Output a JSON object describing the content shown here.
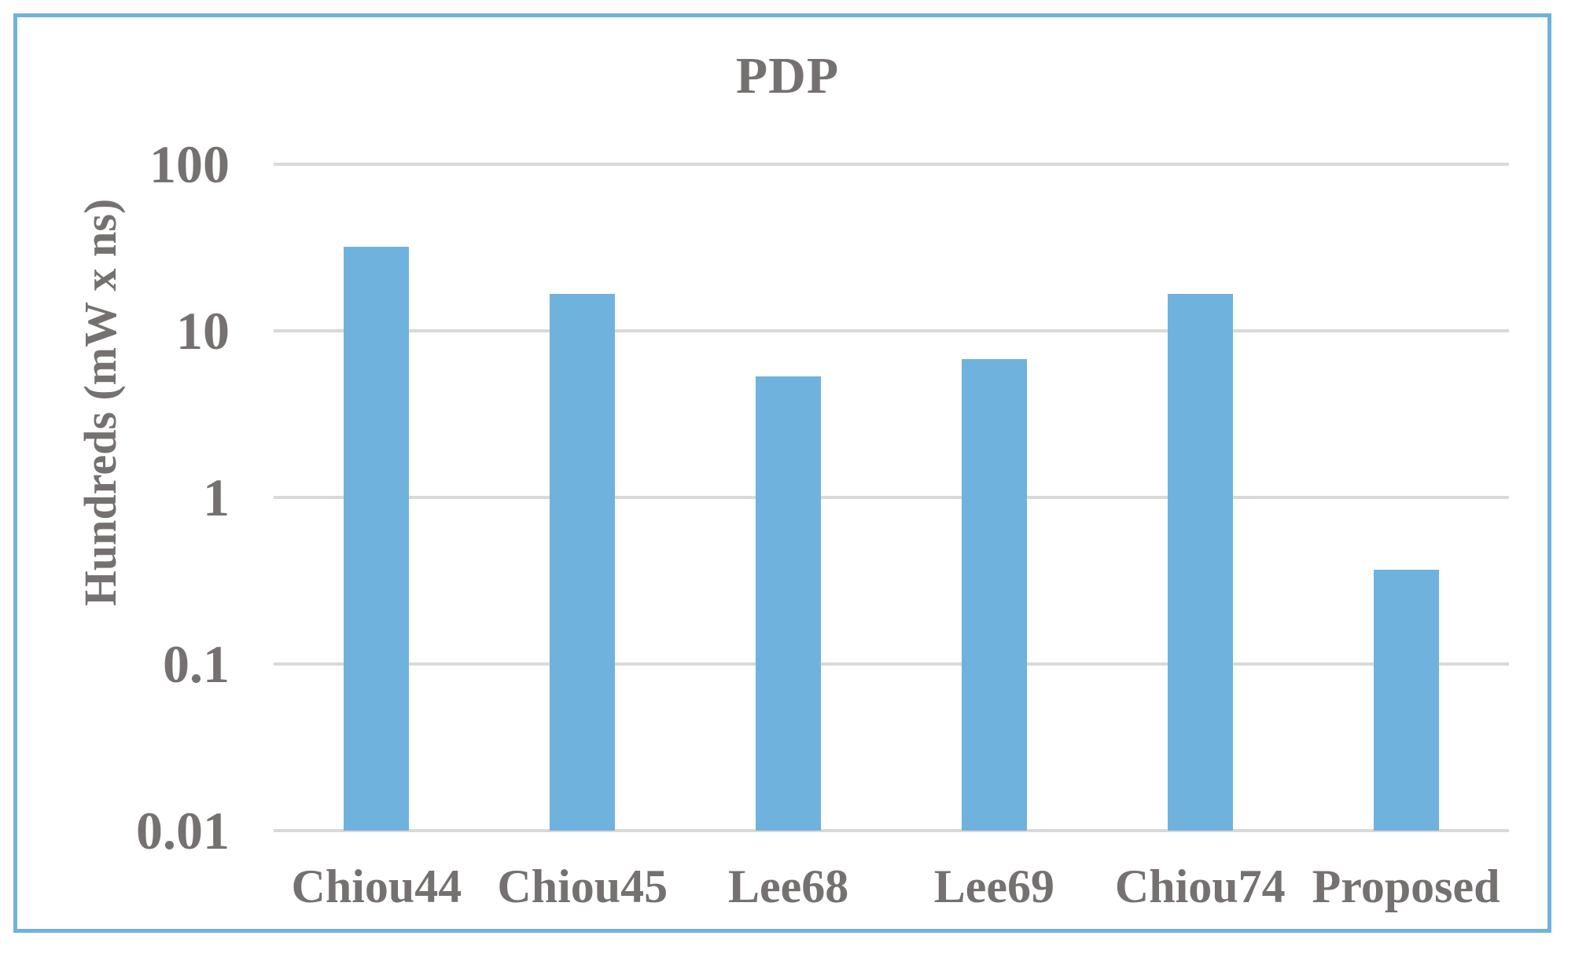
{
  "window": {
    "background_color": "#FFFFFF",
    "frame_border_color": "#70B2DE"
  },
  "chart_data": {
    "type": "bar",
    "title": "PDP",
    "categories": [
      "Chiou44",
      "Chiou45",
      "Lee68",
      "Lee69",
      "Chiou74",
      "Proposed"
    ],
    "values": [
      32,
      16.7,
      5.3,
      6.8,
      16.7,
      0.37
    ],
    "ylabel": "Hundreds (mW x ns)",
    "xlabel": "",
    "yscale": "log",
    "ylim": [
      0.01,
      100
    ],
    "ytick_labels": [
      "100",
      "10",
      "1",
      "0.1",
      "0.01"
    ],
    "grid": true,
    "legend": false,
    "bar_color": "#70B2DE",
    "gridline_color": "#D9D9D9",
    "text_color": "#767171"
  }
}
